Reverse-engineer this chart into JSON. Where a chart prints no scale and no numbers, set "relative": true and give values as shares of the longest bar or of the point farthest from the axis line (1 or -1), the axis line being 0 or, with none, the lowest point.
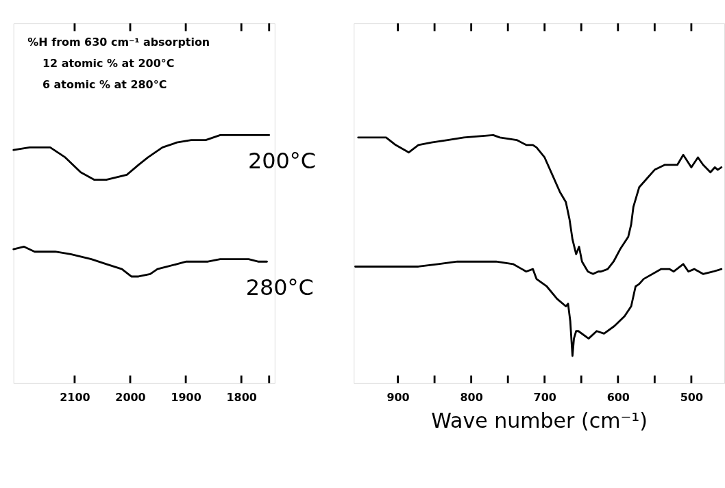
{
  "chart_data": [
    {
      "type": "line",
      "relative": true,
      "xlim": [
        2210,
        1740
      ],
      "xticks": [
        2100,
        2000,
        1900,
        1800,
        {
          "value": 1750,
          "label": null
        }
      ],
      "annotations": [
        "%H from 630 cm⁻¹ absorption",
        "12 atomic % at 200°C",
        "6 atomic % at 280°C"
      ],
      "series": [
        {
          "name": "200°C",
          "color": "#000000",
          "x": [
            2210,
            2181,
            2144,
            2117,
            2089,
            2065,
            2043,
            2006,
            1985,
            1968,
            1942,
            1916,
            1890,
            1864,
            1838,
            1812,
            1791,
            1770,
            1754,
            1750
          ],
          "values": [
            0.94,
            0.95,
            0.95,
            0.91,
            0.85,
            0.82,
            0.82,
            0.84,
            0.88,
            0.91,
            0.95,
            0.97,
            0.98,
            0.98,
            1.0,
            1.0,
            1.0,
            1.0,
            1.0,
            1.0
          ]
        },
        {
          "name": "280°C",
          "color": "#000000",
          "x": [
            2210,
            2191,
            2172,
            2135,
            2107,
            2070,
            2043,
            2015,
            1998,
            1985,
            1964,
            1951,
            1933,
            1916,
            1899,
            1882,
            1860,
            1838,
            1812,
            1787,
            1770,
            1754
          ],
          "values": [
            0.54,
            0.55,
            0.53,
            0.53,
            0.52,
            0.5,
            0.48,
            0.46,
            0.43,
            0.43,
            0.44,
            0.46,
            0.47,
            0.48,
            0.49,
            0.49,
            0.49,
            0.5,
            0.5,
            0.5,
            0.49,
            0.49
          ]
        }
      ]
    },
    {
      "type": "line",
      "relative": true,
      "xlim": [
        960,
        455
      ],
      "xticks": [
        900,
        {
          "value": 850,
          "label": null
        },
        800,
        {
          "value": 750,
          "label": null
        },
        700,
        {
          "value": 650,
          "label": null
        },
        600,
        {
          "value": 550,
          "label": null
        },
        500
      ],
      "xlabel": "Wave number (cm⁻¹)",
      "series": [
        {
          "color": "#000000",
          "x": [
            954,
            916,
            903,
            885,
            872,
            854,
            832,
            810,
            770,
            761,
            738,
            725,
            716,
            711,
            700,
            679,
            671,
            666,
            662,
            657,
            653,
            649,
            641,
            634,
            627,
            623,
            614,
            606,
            597,
            586,
            582,
            579,
            571,
            565,
            550,
            536,
            519,
            511,
            500,
            491,
            484,
            474,
            468,
            464,
            459
          ],
          "values": [
            0.99,
            0.99,
            0.96,
            0.93,
            0.96,
            0.97,
            0.98,
            0.99,
            1.0,
            0.99,
            0.98,
            0.96,
            0.96,
            0.95,
            0.91,
            0.77,
            0.73,
            0.66,
            0.58,
            0.52,
            0.55,
            0.49,
            0.45,
            0.44,
            0.45,
            0.45,
            0.46,
            0.49,
            0.54,
            0.59,
            0.64,
            0.71,
            0.79,
            0.81,
            0.86,
            0.88,
            0.88,
            0.92,
            0.87,
            0.91,
            0.88,
            0.85,
            0.87,
            0.86,
            0.87
          ]
        },
        {
          "color": "#000000",
          "x": [
            958,
            942,
            925,
            916,
            872,
            845,
            819,
            788,
            766,
            743,
            725,
            716,
            711,
            697,
            683,
            671,
            668,
            665,
            662,
            660,
            657,
            654,
            640,
            629,
            619,
            605,
            591,
            582,
            576,
            571,
            565,
            541,
            530,
            524,
            511,
            504,
            496,
            484,
            470,
            459
          ],
          "values": [
            0.47,
            0.47,
            0.47,
            0.47,
            0.47,
            0.48,
            0.49,
            0.49,
            0.49,
            0.48,
            0.45,
            0.46,
            0.42,
            0.39,
            0.34,
            0.31,
            0.32,
            0.25,
            0.11,
            0.18,
            0.21,
            0.21,
            0.18,
            0.21,
            0.2,
            0.23,
            0.27,
            0.31,
            0.39,
            0.4,
            0.42,
            0.46,
            0.46,
            0.45,
            0.48,
            0.45,
            0.46,
            0.44,
            0.45,
            0.46
          ]
        }
      ]
    }
  ]
}
